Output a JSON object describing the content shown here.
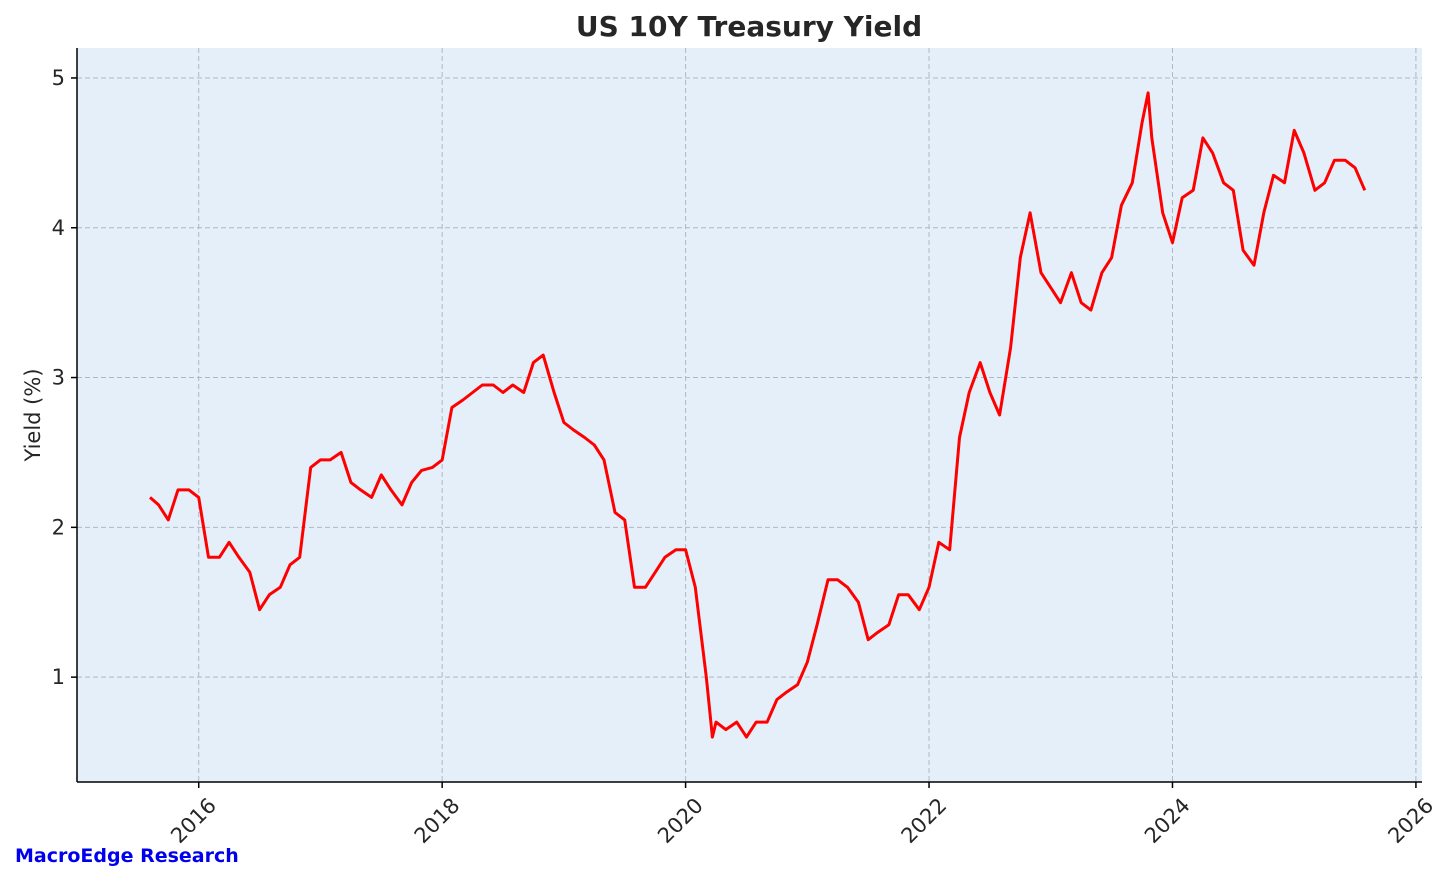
{
  "watermark": "MacroEdge Research",
  "chart_data": {
    "type": "line",
    "title": "US 10Y Treasury Yield",
    "xlabel": "",
    "ylabel": "Yield (%)",
    "xlim": [
      2015.0,
      2026.05
    ],
    "ylim": [
      0.3,
      5.2
    ],
    "x_ticks": [
      2016,
      2018,
      2020,
      2022,
      2024,
      2026
    ],
    "x_tick_labels": [
      "2016",
      "2018",
      "2020",
      "2022",
      "2024",
      "2026"
    ],
    "y_ticks": [
      1,
      2,
      3,
      4,
      5
    ],
    "y_tick_labels": [
      "1",
      "2",
      "3",
      "4",
      "5"
    ],
    "grid": true,
    "colors": {
      "line": "#ff0000",
      "plot_background": "#e4eff9",
      "grid": "#b0b8c0",
      "watermark": "#0000ee"
    },
    "series": [
      {
        "x": [
          2015.6,
          2015.67,
          2015.75,
          2015.83,
          2015.92,
          2016.0,
          2016.08,
          2016.17,
          2016.25,
          2016.33,
          2016.42,
          2016.5,
          2016.58,
          2016.67,
          2016.75,
          2016.83,
          2016.92,
          2017.0,
          2017.08,
          2017.17,
          2017.25,
          2017.33,
          2017.42,
          2017.5,
          2017.58,
          2017.67,
          2017.75,
          2017.83,
          2017.92,
          2018.0,
          2018.08,
          2018.17,
          2018.25,
          2018.33,
          2018.42,
          2018.5,
          2018.58,
          2018.67,
          2018.75,
          2018.83,
          2018.92,
          2019.0,
          2019.08,
          2019.17,
          2019.25,
          2019.33,
          2019.42,
          2019.5,
          2019.58,
          2019.67,
          2019.75,
          2019.83,
          2019.92,
          2020.0,
          2020.08,
          2020.17,
          2020.22,
          2020.25,
          2020.33,
          2020.42,
          2020.5,
          2020.58,
          2020.67,
          2020.75,
          2020.83,
          2020.92,
          2021.0,
          2021.08,
          2021.17,
          2021.25,
          2021.33,
          2021.42,
          2021.5,
          2021.58,
          2021.67,
          2021.75,
          2021.83,
          2021.92,
          2022.0,
          2022.08,
          2022.17,
          2022.25,
          2022.33,
          2022.42,
          2022.5,
          2022.58,
          2022.67,
          2022.75,
          2022.83,
          2022.92,
          2023.0,
          2023.08,
          2023.17,
          2023.25,
          2023.33,
          2023.42,
          2023.5,
          2023.58,
          2023.67,
          2023.75,
          2023.8,
          2023.83,
          2023.92,
          2024.0,
          2024.08,
          2024.17,
          2024.25,
          2024.33,
          2024.42,
          2024.5,
          2024.58,
          2024.67,
          2024.75,
          2024.83,
          2024.92,
          2025.0,
          2025.08,
          2025.17,
          2025.25,
          2025.33,
          2025.42,
          2025.5,
          2025.58
        ],
        "y": [
          2.2,
          2.15,
          2.05,
          2.25,
          2.25,
          2.2,
          1.8,
          1.8,
          1.9,
          1.8,
          1.7,
          1.45,
          1.55,
          1.6,
          1.75,
          1.8,
          2.4,
          2.45,
          2.45,
          2.5,
          2.3,
          2.25,
          2.2,
          2.35,
          2.25,
          2.15,
          2.3,
          2.38,
          2.4,
          2.45,
          2.8,
          2.85,
          2.9,
          2.95,
          2.95,
          2.9,
          2.95,
          2.9,
          3.1,
          3.15,
          2.9,
          2.7,
          2.65,
          2.6,
          2.55,
          2.45,
          2.1,
          2.05,
          1.6,
          1.6,
          1.7,
          1.8,
          1.85,
          1.85,
          1.6,
          1.0,
          0.6,
          0.7,
          0.65,
          0.7,
          0.6,
          0.7,
          0.7,
          0.85,
          0.9,
          0.95,
          1.1,
          1.35,
          1.65,
          1.65,
          1.6,
          1.5,
          1.25,
          1.3,
          1.35,
          1.55,
          1.55,
          1.45,
          1.6,
          1.9,
          1.85,
          2.6,
          2.9,
          3.1,
          2.9,
          2.75,
          3.2,
          3.8,
          4.1,
          3.7,
          3.6,
          3.5,
          3.7,
          3.5,
          3.45,
          3.7,
          3.8,
          4.15,
          4.3,
          4.7,
          4.9,
          4.6,
          4.1,
          3.9,
          4.2,
          4.25,
          4.6,
          4.5,
          4.3,
          4.25,
          3.85,
          3.75,
          4.1,
          4.35,
          4.3,
          4.65,
          4.5,
          4.25,
          4.3,
          4.45,
          4.45,
          4.4,
          4.25
        ]
      }
    ]
  }
}
